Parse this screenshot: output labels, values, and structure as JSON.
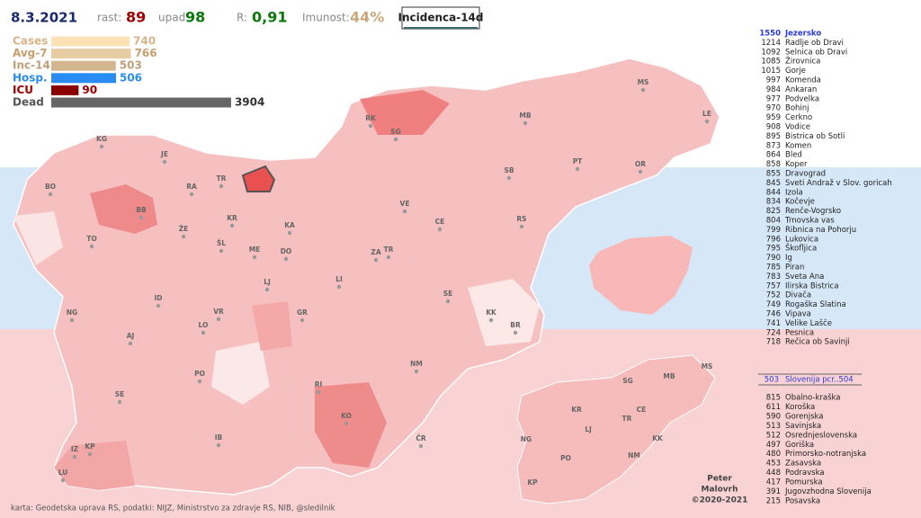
{
  "header": {
    "date": "8.3.2021",
    "rast_label": "rast:",
    "rast": 89,
    "upad_label": "upad:",
    "upad": 98,
    "r_label": "R:",
    "r": "0,91",
    "imunost_label": "Imunost:",
    "imunost": "44%",
    "button": "Incidenca-14d"
  },
  "stats": [
    {
      "label": "Cases",
      "value": 740,
      "color": "#fde2b8"
    },
    {
      "label": "Avg-7",
      "value": 766,
      "color": "#e8cca4"
    },
    {
      "label": "Inc-14",
      "value": 503,
      "color": "#d4b690"
    },
    {
      "label": "Hosp.",
      "value": 506,
      "color": "#2a8cf0"
    },
    {
      "label": "ICU",
      "value": 90,
      "color": "#8b0000"
    },
    {
      "label": "Dead",
      "value": 3904,
      "color": "#666666"
    }
  ],
  "municipalities": [
    {
      "value": 1550,
      "name": "Jezersko"
    },
    {
      "value": 1214,
      "name": "Radlje ob Dravi"
    },
    {
      "value": 1092,
      "name": "Selnica ob Dravi"
    },
    {
      "value": 1085,
      "name": "Žirovnica"
    },
    {
      "value": 1015,
      "name": "Gorje"
    },
    {
      "value": 997,
      "name": "Komenda"
    },
    {
      "value": 984,
      "name": "Ankaran"
    },
    {
      "value": 977,
      "name": "Podvelka"
    },
    {
      "value": 970,
      "name": "Bohinj"
    },
    {
      "value": 959,
      "name": "Cerkno"
    },
    {
      "value": 908,
      "name": "Vodice"
    },
    {
      "value": 895,
      "name": "Bistrica ob Sotli"
    },
    {
      "value": 873,
      "name": "Komen"
    },
    {
      "value": 864,
      "name": "Bled"
    },
    {
      "value": 858,
      "name": "Koper"
    },
    {
      "value": 855,
      "name": "Dravograd"
    },
    {
      "value": 845,
      "name": "Sveti Andraž v Slov. goricah"
    },
    {
      "value": 844,
      "name": "Izola"
    },
    {
      "value": 834,
      "name": "Kočevje"
    },
    {
      "value": 825,
      "name": "Renče-Vogrsko"
    },
    {
      "value": 804,
      "name": "Trnovska vas"
    },
    {
      "value": 799,
      "name": "Ribnica na Pohorju"
    },
    {
      "value": 796,
      "name": "Lukovica"
    },
    {
      "value": 795,
      "name": "Škofljica"
    },
    {
      "value": 790,
      "name": "Ig"
    },
    {
      "value": 785,
      "name": "Piran"
    },
    {
      "value": 783,
      "name": "Sveta Ana"
    },
    {
      "value": 757,
      "name": "Ilirska Bistrica"
    },
    {
      "value": 752,
      "name": "Divača"
    },
    {
      "value": 749,
      "name": "Rogaška Slatina"
    },
    {
      "value": 746,
      "name": "Vipava"
    },
    {
      "value": 741,
      "name": "Velike Lašče"
    },
    {
      "value": 724,
      "name": "Pesnica"
    },
    {
      "value": 718,
      "name": "Rečica ob Savinji"
    }
  ],
  "slovenia": {
    "value": 503,
    "name": "Slovenija pcr..504"
  },
  "regions": [
    {
      "value": 815,
      "name": "Obalno-kraška"
    },
    {
      "value": 611,
      "name": "Koroška"
    },
    {
      "value": 590,
      "name": "Gorenjska"
    },
    {
      "value": 513,
      "name": "Savinjska"
    },
    {
      "value": 512,
      "name": "Osrednjeslovenska"
    },
    {
      "value": 497,
      "name": "Goriška"
    },
    {
      "value": 480,
      "name": "Primorsko-notranjska"
    },
    {
      "value": 453,
      "name": "Zasavska"
    },
    {
      "value": 448,
      "name": "Podravska"
    },
    {
      "value": 417,
      "name": "Pomurska"
    },
    {
      "value": 391,
      "name": "Jugovzhodna Slovenija"
    },
    {
      "value": 215,
      "name": "Posavska"
    }
  ],
  "map_labels": [
    "KG",
    "JE",
    "BO",
    "RA",
    "TR",
    "BB",
    "KR",
    "KA",
    "TO",
    "ŽE",
    "ŠL",
    "ME",
    "DO",
    "LJ",
    "ZA",
    "TR",
    "LI",
    "ID",
    "NG",
    "VR",
    "GR",
    "SE",
    "KK",
    "BR",
    "AJ",
    "LO",
    "PO",
    "RI",
    "NM",
    "SE",
    "KO",
    "ČR",
    "IB",
    "IZ",
    "KP",
    "LU",
    "RK",
    "SG",
    "MB",
    "MS",
    "LE",
    "PT",
    "SB",
    "VE",
    "CE",
    "RS",
    "OR"
  ],
  "inset_labels": [
    "SG",
    "MB",
    "MS",
    "KR",
    "CE",
    "TR",
    "NG",
    "LJ",
    "KK",
    "PO",
    "NM",
    "KP"
  ],
  "credits": {
    "source": "karta: Geodetska uprava RS, podatki: NIJZ, Ministrstvo za zdravje RS, NIB, @sledilnik",
    "author": [
      "Peter",
      "Malovrh",
      "©2020-2021"
    ]
  }
}
